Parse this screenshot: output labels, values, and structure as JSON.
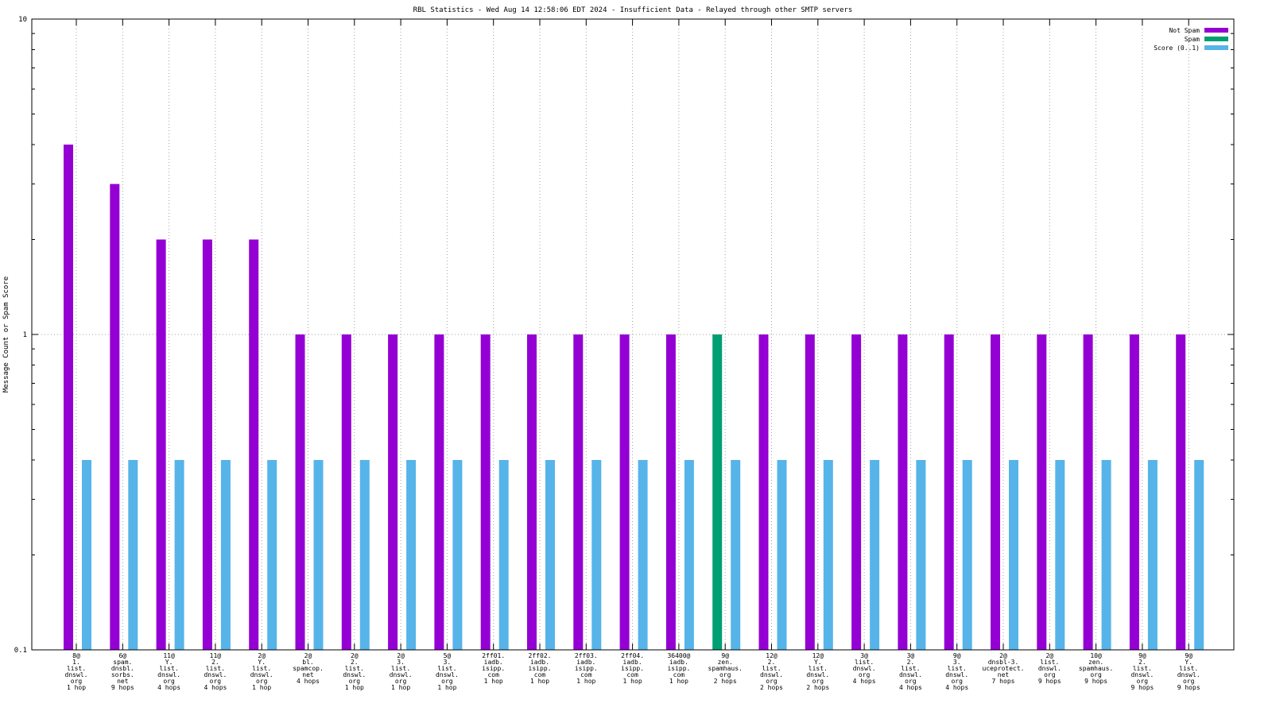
{
  "chart_data": {
    "type": "bar",
    "title": "RBL Statistics - Wed Aug 14 12:58:06 EDT 2024 - Insufficient Data - Relayed through other SMTP servers",
    "ylabel": "Message Count or Spam Score",
    "xlabel": "",
    "yscale": "log",
    "ylim": [
      0.1,
      10
    ],
    "yticks": [
      "0.1",
      "1",
      "10"
    ],
    "grid": true,
    "legend_position": "top-right",
    "categories": [
      [
        "8@",
        "1.",
        "list.",
        "dnswl.",
        "org",
        "1 hop"
      ],
      [
        "6@",
        "spam.",
        "dnsbl.",
        "sorbs.",
        "net",
        "9 hops"
      ],
      [
        "11@",
        "Y.",
        "list.",
        "dnswl.",
        "org",
        "4 hops"
      ],
      [
        "11@",
        "2.",
        "list.",
        "dnswl.",
        "org",
        "4 hops"
      ],
      [
        "2@",
        "Y.",
        "list.",
        "dnswl.",
        "org",
        "1 hop"
      ],
      [
        "2@",
        "bl.",
        "spamcop.",
        "net",
        "4 hops"
      ],
      [
        "2@",
        "2.",
        "list.",
        "dnswl.",
        "org",
        "1 hop"
      ],
      [
        "2@",
        "3.",
        "list.",
        "dnswl.",
        "org",
        "1 hop"
      ],
      [
        "5@",
        "3.",
        "list.",
        "dnswl.",
        "org",
        "1 hop"
      ],
      [
        "2ff01.",
        "iadb.",
        "isipp.",
        "com",
        "1 hop"
      ],
      [
        "2ff02.",
        "iadb.",
        "isipp.",
        "com",
        "1 hop"
      ],
      [
        "2ff03.",
        "iadb.",
        "isipp.",
        "com",
        "1 hop"
      ],
      [
        "2ff04.",
        "iadb.",
        "isipp.",
        "com",
        "1 hop"
      ],
      [
        "36400@",
        "iadb.",
        "isipp.",
        "com",
        "1 hop"
      ],
      [
        "9@",
        "zen.",
        "spamhaus.",
        "org",
        "2 hops"
      ],
      [
        "12@",
        "2.",
        "list.",
        "dnswl.",
        "org",
        "2 hops"
      ],
      [
        "12@",
        "Y.",
        "list.",
        "dnswl.",
        "org",
        "2 hops"
      ],
      [
        "3@",
        "list.",
        "dnswl.",
        "org",
        "4 hops"
      ],
      [
        "3@",
        "2.",
        "list.",
        "dnswl.",
        "org",
        "4 hops"
      ],
      [
        "9@",
        "3.",
        "list.",
        "dnswl.",
        "org",
        "4 hops"
      ],
      [
        "2@",
        "dnsbl-3.",
        "uceprotect.",
        "net",
        "7 hops"
      ],
      [
        "2@",
        "list.",
        "dnswl.",
        "org",
        "9 hops"
      ],
      [
        "10@",
        "zen.",
        "spamhaus.",
        "org",
        "9 hops"
      ],
      [
        "9@",
        "2.",
        "list.",
        "dnswl.",
        "org",
        "9 hops"
      ],
      [
        "9@",
        "Y.",
        "list.",
        "dnswl.",
        "org",
        "9 hops"
      ]
    ],
    "series": [
      {
        "name": "Not Spam",
        "color": "#9400d3",
        "values": [
          4,
          3,
          2,
          2,
          2,
          1,
          1,
          1,
          1,
          1,
          1,
          1,
          1,
          1,
          null,
          1,
          1,
          1,
          1,
          1,
          1,
          1,
          1,
          1,
          1
        ]
      },
      {
        "name": "Spam",
        "color": "#009e73",
        "values": [
          null,
          null,
          null,
          null,
          null,
          null,
          null,
          null,
          null,
          null,
          null,
          null,
          null,
          null,
          1,
          null,
          null,
          null,
          null,
          null,
          null,
          null,
          null,
          null,
          null
        ]
      },
      {
        "name": "Score (0..1)",
        "color": "#56b4e9",
        "values": [
          0.4,
          0.4,
          0.4,
          0.4,
          0.4,
          0.4,
          0.4,
          0.4,
          0.4,
          0.4,
          0.4,
          0.4,
          0.4,
          0.4,
          0.4,
          0.4,
          0.4,
          0.4,
          0.4,
          0.4,
          0.4,
          0.4,
          0.4,
          0.4,
          0.4
        ]
      }
    ]
  }
}
